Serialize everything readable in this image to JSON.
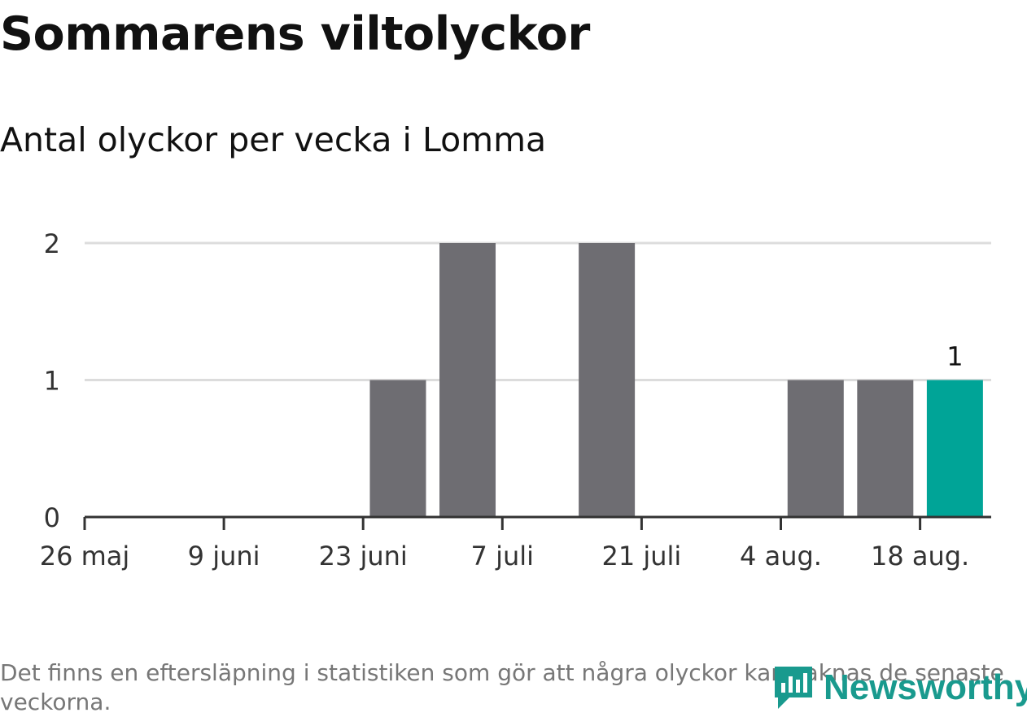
{
  "header": {
    "title": "Sommarens viltolyckor",
    "subtitle": "Antal olyckor per vecka i Lomma"
  },
  "footnote": "Det finns en eftersläpning i statistiken som gör att några olyckor kan saknas de senaste veckorna.",
  "brand": {
    "name": "Newsworthy",
    "color": "#199a8e",
    "icon": "newsworthy-logo-icon"
  },
  "chart_data": {
    "type": "bar",
    "categories": [
      "26 maj",
      "2 juni",
      "9 juni",
      "16 juni",
      "23 juni",
      "30 juni",
      "7 juli",
      "14 juli",
      "21 juli",
      "28 juli",
      "4 aug.",
      "11 aug.",
      "18 aug."
    ],
    "values": [
      0,
      0,
      0,
      0,
      1,
      2,
      0,
      2,
      0,
      0,
      1,
      1,
      1
    ],
    "x_tick_labels": [
      "26 maj",
      "9 juni",
      "23 juni",
      "7 juli",
      "21 juli",
      "4 aug.",
      "18 aug."
    ],
    "y_ticks": [
      0,
      1,
      2
    ],
    "ylim": [
      0,
      2
    ],
    "highlight_index": 12,
    "highlight_label": "1",
    "grid": true,
    "colors": {
      "bar": "#6e6d72",
      "highlight": "#00a497",
      "grid": "#dcdcdc",
      "axis": "#333333"
    }
  }
}
